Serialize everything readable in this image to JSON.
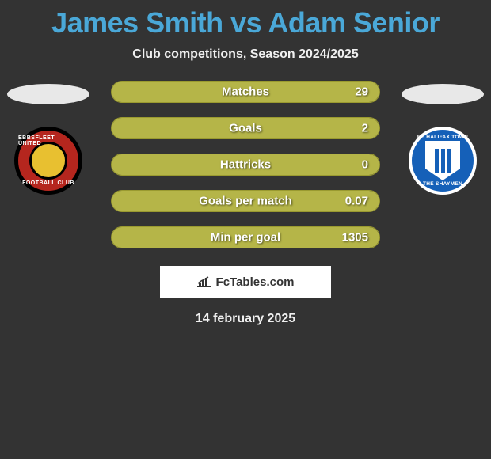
{
  "title": "James Smith vs Adam Senior",
  "title_color": "#4aa8d8",
  "subtitle": "Club competitions, Season 2024/2025",
  "background_color": "#333333",
  "bar_fill_color": "#b5b548",
  "bar_border_color": "#9a9a30",
  "text_color": "#ffffff",
  "players": {
    "left": {
      "club_name_top": "EBBSFLEET UNITED",
      "club_name_bottom": "FOOTBALL CLUB",
      "badge_outer": "#b5261e",
      "badge_border": "#000000",
      "badge_inner": "#e8c030"
    },
    "right": {
      "club_name_top": "FC HALIFAX TOWN",
      "club_name_bottom": "THE SHAYMEN",
      "badge_outer": "#1560b8",
      "badge_border": "#ffffff",
      "badge_inner": "#ffffff",
      "stripe_color": "#1560b8"
    }
  },
  "stats": [
    {
      "label": "Matches",
      "left_val": "",
      "right_val": "29",
      "left_pct": 45,
      "right_pct": 100
    },
    {
      "label": "Goals",
      "left_val": "",
      "right_val": "2",
      "left_pct": 45,
      "right_pct": 100
    },
    {
      "label": "Hattricks",
      "left_val": "",
      "right_val": "0",
      "left_pct": 45,
      "right_pct": 100
    },
    {
      "label": "Goals per match",
      "left_val": "",
      "right_val": "0.07",
      "left_pct": 45,
      "right_pct": 100
    },
    {
      "label": "Min per goal",
      "left_val": "",
      "right_val": "1305",
      "left_pct": 45,
      "right_pct": 100
    }
  ],
  "attribution": "FcTables.com",
  "date": "14 february 2025"
}
